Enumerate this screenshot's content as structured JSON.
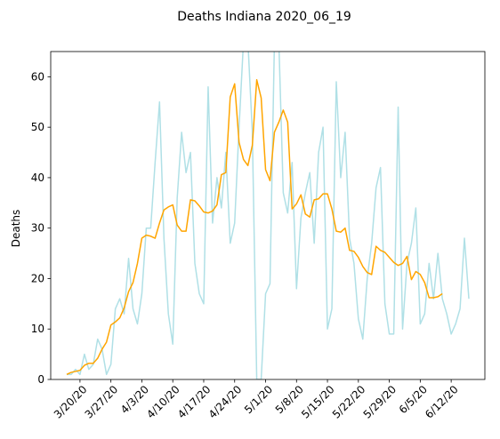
{
  "chart_data": {
    "type": "line",
    "title": "Deaths Indiana 2020_06_19",
    "xlabel": "",
    "ylabel": "Deaths",
    "ylim": [
      0,
      65
    ],
    "yticks": [
      0,
      10,
      20,
      30,
      40,
      50,
      60
    ],
    "grid": false,
    "legend": "none",
    "x_start": "3/17/20",
    "xticks": [
      "3/20/20",
      "3/27/20",
      "4/3/20",
      "4/10/20",
      "4/17/20",
      "4/24/20",
      "5/1/20",
      "5/8/20",
      "5/15/20",
      "5/22/20",
      "5/29/20",
      "6/5/20",
      "6/12/20"
    ],
    "series": [
      {
        "color": "#b0e0e6",
        "values": [
          1,
          1,
          2,
          1,
          5,
          2,
          3,
          8,
          6,
          1,
          3,
          14,
          16,
          13,
          24,
          14,
          11,
          17,
          30,
          30,
          43,
          55,
          28,
          13,
          7,
          36,
          49,
          41,
          45,
          23,
          17,
          15,
          58,
          31,
          40,
          34,
          45,
          27,
          31,
          50,
          67,
          67,
          49,
          0,
          0,
          17,
          19,
          67,
          67,
          37,
          33,
          43,
          18,
          32,
          37,
          41,
          27,
          45,
          50,
          10,
          14,
          59,
          40,
          49,
          28,
          23,
          12,
          8,
          20,
          27,
          38,
          42,
          15,
          9,
          9,
          54,
          10,
          23,
          27,
          34,
          11,
          13,
          23,
          16,
          25,
          16,
          13,
          9,
          11,
          14,
          28,
          16
        ]
      },
      {
        "color": "#ffa500",
        "values": [
          1,
          1.4,
          1.6,
          1.8,
          2.8,
          3.2,
          3.2,
          4.2,
          6,
          7.4,
          10.8,
          11.4,
          12.2,
          14.2,
          17.4,
          19.2,
          23,
          28,
          28.6,
          28.4,
          28,
          31,
          33.6,
          34.2,
          34.6,
          30.6,
          29.4,
          29.4,
          35.6,
          35.4,
          34.4,
          33.2,
          33,
          33.4,
          34.6,
          40.6,
          41,
          56,
          58.6,
          47,
          43.6,
          42.4,
          46.4,
          59.4,
          55.8,
          41.6,
          39.4,
          49,
          51,
          53.4,
          51,
          33.8,
          34.8,
          36.6,
          32.8,
          32.2,
          35.6,
          35.8,
          36.8,
          36.8,
          33.8,
          29.4,
          29.2,
          30,
          25.6,
          25.4,
          24.2,
          22.4,
          21.2,
          20.8,
          26.4,
          25.6,
          25.2,
          24.2,
          23.2,
          22.6,
          23,
          24.4,
          19.8,
          21.4,
          20.8,
          19.2,
          16.2,
          16.2,
          16.4,
          17
        ]
      }
    ]
  }
}
